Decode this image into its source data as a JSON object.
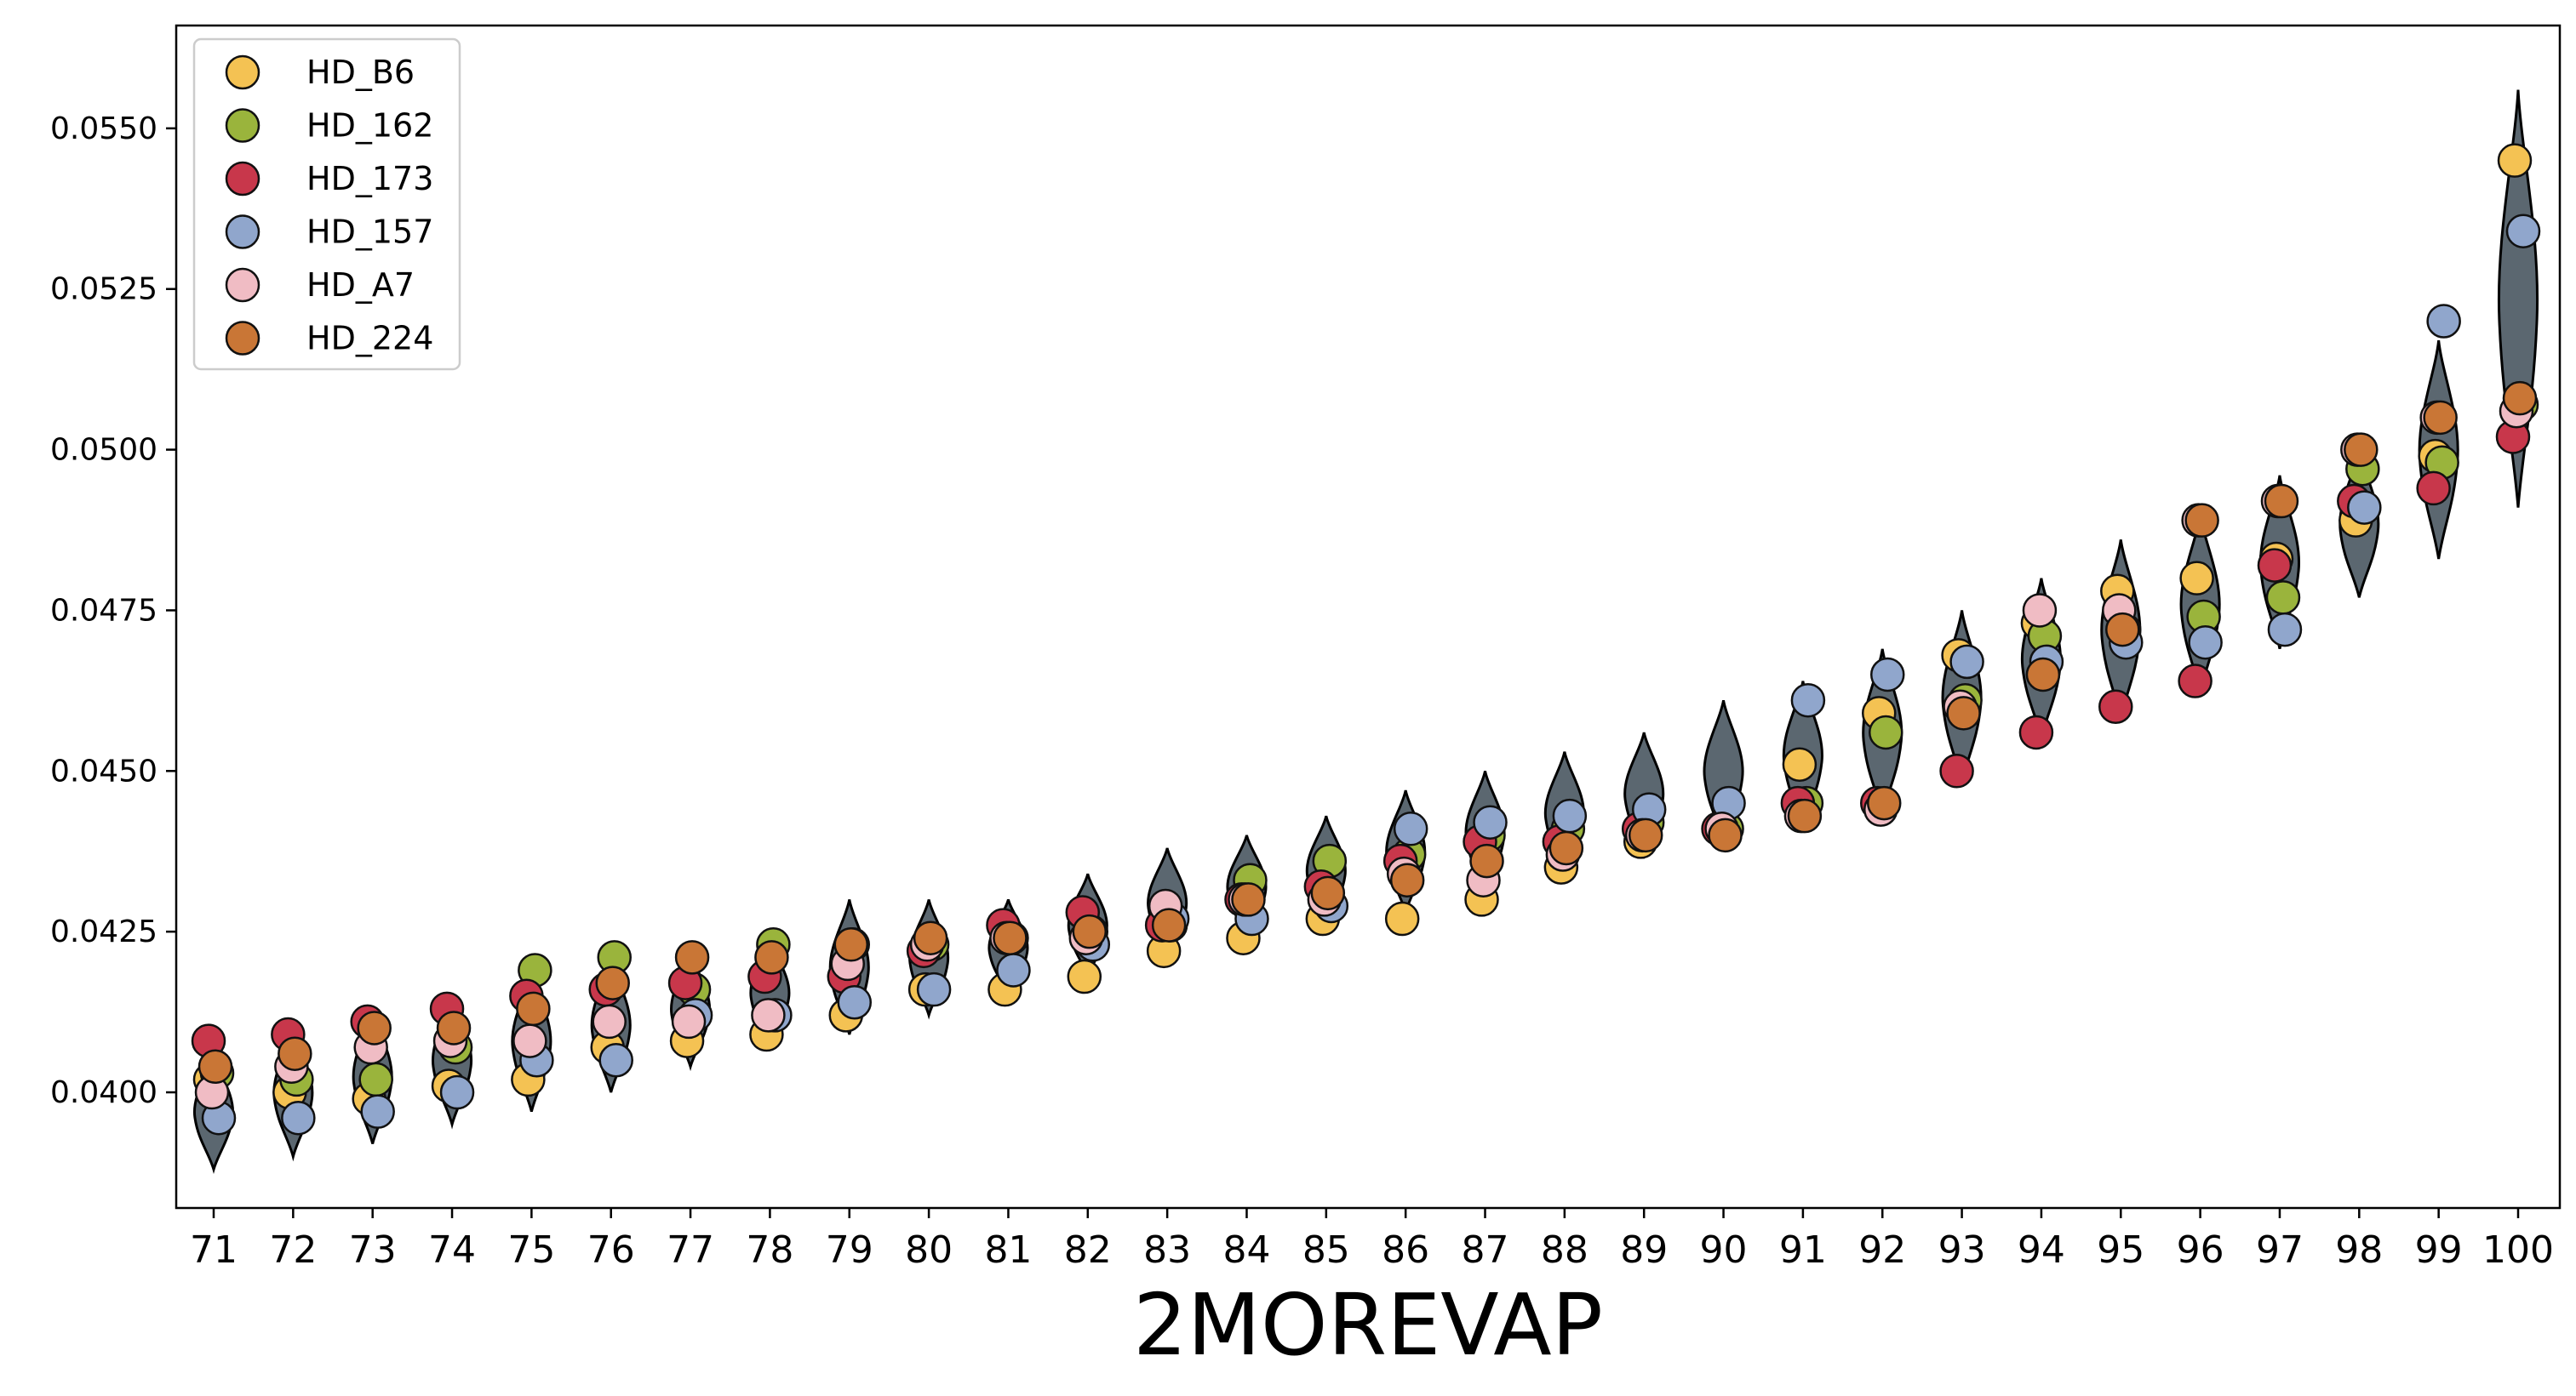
{
  "chart_data": {
    "type": "scatter",
    "subtype": "violin-with-points",
    "title": "",
    "xlabel": "2MOREVAP",
    "ylabel": "",
    "x": [
      71,
      72,
      73,
      74,
      75,
      76,
      77,
      78,
      79,
      80,
      81,
      82,
      83,
      84,
      85,
      86,
      87,
      88,
      89,
      90,
      91,
      92,
      93,
      94,
      95,
      96,
      97,
      98,
      99,
      100
    ],
    "ylim": [
      0.0382,
      0.0566
    ],
    "y_ticks": [
      "0.0400",
      "0.0425",
      "0.0450",
      "0.0475",
      "0.0500",
      "0.0525",
      "0.0550"
    ],
    "grid": false,
    "legend_position": "top-left",
    "violin_color": "#5b6770",
    "violins": [
      {
        "x": 71,
        "min": 0.0388,
        "max": 0.0406
      },
      {
        "x": 72,
        "min": 0.039,
        "max": 0.041
      },
      {
        "x": 73,
        "min": 0.0392,
        "max": 0.0413
      },
      {
        "x": 74,
        "min": 0.0395,
        "max": 0.0415
      },
      {
        "x": 75,
        "min": 0.0397,
        "max": 0.0419
      },
      {
        "x": 76,
        "min": 0.04,
        "max": 0.0421
      },
      {
        "x": 77,
        "min": 0.0404,
        "max": 0.0422
      },
      {
        "x": 78,
        "min": 0.0407,
        "max": 0.0424
      },
      {
        "x": 79,
        "min": 0.0409,
        "max": 0.043
      },
      {
        "x": 80,
        "min": 0.0412,
        "max": 0.043
      },
      {
        "x": 81,
        "min": 0.0415,
        "max": 0.043
      },
      {
        "x": 82,
        "min": 0.0418,
        "max": 0.0434
      },
      {
        "x": 83,
        "min": 0.0421,
        "max": 0.0438
      },
      {
        "x": 84,
        "min": 0.0424,
        "max": 0.044
      },
      {
        "x": 85,
        "min": 0.0426,
        "max": 0.0443
      },
      {
        "x": 86,
        "min": 0.0428,
        "max": 0.0447
      },
      {
        "x": 87,
        "min": 0.0431,
        "max": 0.045
      },
      {
        "x": 88,
        "min": 0.0434,
        "max": 0.0453
      },
      {
        "x": 89,
        "min": 0.0437,
        "max": 0.0456
      },
      {
        "x": 90,
        "min": 0.0439,
        "max": 0.0461
      },
      {
        "x": 91,
        "min": 0.0441,
        "max": 0.0464
      },
      {
        "x": 92,
        "min": 0.0443,
        "max": 0.0469
      },
      {
        "x": 93,
        "min": 0.0448,
        "max": 0.0475
      },
      {
        "x": 94,
        "min": 0.0455,
        "max": 0.048
      },
      {
        "x": 95,
        "min": 0.0458,
        "max": 0.0486
      },
      {
        "x": 96,
        "min": 0.0462,
        "max": 0.049
      },
      {
        "x": 97,
        "min": 0.0469,
        "max": 0.0496
      },
      {
        "x": 98,
        "min": 0.0477,
        "max": 0.05
      },
      {
        "x": 99,
        "min": 0.0483,
        "max": 0.0517
      },
      {
        "x": 100,
        "min": 0.0491,
        "max": 0.0556
      }
    ],
    "series": [
      {
        "name": "HD_B6",
        "color": "#f4c253",
        "values": [
          0.0402,
          0.04,
          0.0399,
          0.0401,
          0.0402,
          0.0407,
          0.0408,
          0.0409,
          0.0412,
          0.0416,
          0.0416,
          0.0418,
          0.0422,
          0.0424,
          0.0427,
          0.0427,
          0.043,
          0.0435,
          0.0439,
          0.0441,
          0.0451,
          0.0459,
          0.0468,
          0.0473,
          0.0478,
          0.048,
          0.0483,
          0.0489,
          0.0499,
          0.0545
        ]
      },
      {
        "name": "HD_162",
        "color": "#9ab43c",
        "values": [
          0.0403,
          0.0402,
          0.0402,
          0.0407,
          0.0419,
          0.0421,
          0.0416,
          0.0423,
          0.0423,
          0.0423,
          0.0424,
          0.0425,
          0.0426,
          0.0433,
          0.0436,
          0.0437,
          0.044,
          0.0441,
          0.0442,
          0.0441,
          0.0445,
          0.0456,
          0.0461,
          0.0471,
          0.0472,
          0.0474,
          0.0477,
          0.0497,
          0.0498,
          0.0507
        ]
      },
      {
        "name": "HD_173",
        "color": "#c8374b",
        "values": [
          0.0408,
          0.0409,
          0.0411,
          0.0413,
          0.0415,
          0.0416,
          0.0417,
          0.0418,
          0.0418,
          0.0422,
          0.0426,
          0.0428,
          0.0426,
          0.043,
          0.0432,
          0.0436,
          0.0439,
          0.0439,
          0.0441,
          0.0441,
          0.0445,
          0.0445,
          0.045,
          0.0456,
          0.046,
          0.0464,
          0.0482,
          0.0492,
          0.0494,
          0.0502
        ]
      },
      {
        "name": "HD_157",
        "color": "#90a6cc",
        "values": [
          0.0396,
          0.0396,
          0.0397,
          0.04,
          0.0405,
          0.0405,
          0.0412,
          0.0412,
          0.0414,
          0.0416,
          0.0419,
          0.0423,
          0.0427,
          0.0427,
          0.0429,
          0.0441,
          0.0442,
          0.0443,
          0.0444,
          0.0445,
          0.0461,
          0.0465,
          0.0467,
          0.0467,
          0.047,
          0.047,
          0.0472,
          0.0491,
          0.052,
          0.0534
        ]
      },
      {
        "name": "HD_A7",
        "color": "#f0bcc4",
        "values": [
          0.04,
          0.0404,
          0.0407,
          0.0408,
          0.0408,
          0.0411,
          0.0411,
          0.0412,
          0.042,
          0.0423,
          0.0424,
          0.0424,
          0.0429,
          0.043,
          0.043,
          0.0434,
          0.0433,
          0.0437,
          0.044,
          0.0441,
          0.0443,
          0.0444,
          0.046,
          0.0475,
          0.0475,
          0.0489,
          0.0492,
          0.05,
          0.0505,
          0.0506
        ]
      },
      {
        "name": "HD_224",
        "color": "#c97636",
        "values": [
          0.0404,
          0.0406,
          0.041,
          0.041,
          0.0413,
          0.0417,
          0.0421,
          0.0421,
          0.0423,
          0.0424,
          0.0424,
          0.0425,
          0.0426,
          0.043,
          0.0431,
          0.0433,
          0.0436,
          0.0438,
          0.044,
          0.044,
          0.0443,
          0.0445,
          0.0459,
          0.0465,
          0.0472,
          0.0489,
          0.0492,
          0.05,
          0.0505,
          0.0508
        ]
      }
    ]
  }
}
